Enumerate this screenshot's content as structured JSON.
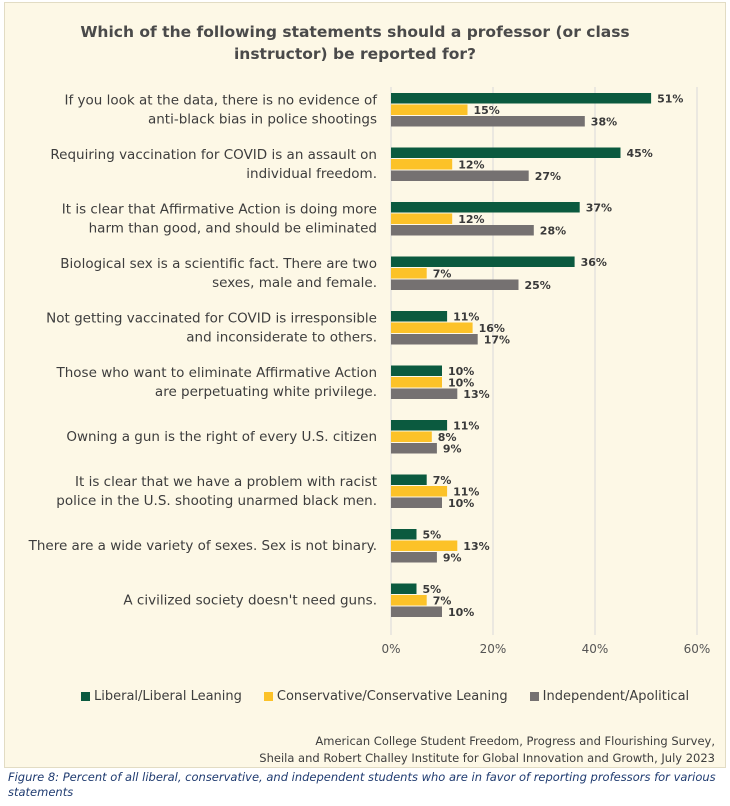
{
  "chart_data": {
    "type": "bar",
    "orientation": "horizontal",
    "title": "Which of the following statements should a professor (or class\ninstructor) be reported for?",
    "categories": [
      [
        "If you look at the data, there is no evidence of",
        "anti-black bias in police shootings"
      ],
      [
        "Requiring vaccination for COVID is an assault on",
        "individual freedom."
      ],
      [
        "It is clear that Affirmative Action is doing more",
        "harm than good, and should be eliminated"
      ],
      [
        "Biological sex is a scientific fact. There are two",
        "sexes, male and female."
      ],
      [
        "Not getting vaccinated for COVID is irresponsible",
        "and inconsiderate to others."
      ],
      [
        "Those who want to eliminate Affirmative Action",
        "are perpetuating white privilege."
      ],
      [
        "Owning a gun is the right of every U.S. citizen"
      ],
      [
        "It is clear that we have a problem with racist",
        "police in the U.S. shooting unarmed black men."
      ],
      [
        "There are a wide variety of sexes. Sex is not binary."
      ],
      [
        "A civilized society doesn't need guns."
      ]
    ],
    "series": [
      {
        "name": "Liberal/Liberal Leaning",
        "color": "#0b5a3f",
        "values": [
          51,
          45,
          37,
          36,
          11,
          10,
          11,
          7,
          5,
          5
        ]
      },
      {
        "name": "Conservative/Conservative Leaning",
        "color": "#fcc228",
        "values": [
          15,
          12,
          12,
          7,
          16,
          10,
          8,
          11,
          13,
          7
        ]
      },
      {
        "name": "Independent/Apolitical",
        "color": "#757171",
        "values": [
          38,
          27,
          28,
          25,
          17,
          13,
          9,
          10,
          9,
          10
        ]
      }
    ],
    "xlim": [
      0,
      60
    ],
    "xticks": [
      "0%",
      "20%",
      "40%",
      "60%"
    ],
    "value_suffix": "%",
    "grid": true,
    "legend_position": "bottom"
  },
  "source": {
    "line1": "American College Student Freedom, Progress and Flourishing Survey,",
    "line2": "Sheila and Robert Challey Institute for Global Innovation and Growth, July 2023"
  },
  "caption": "Figure 8: Percent of all liberal, conservative, and independent students who are in favor of reporting professors for various statements"
}
